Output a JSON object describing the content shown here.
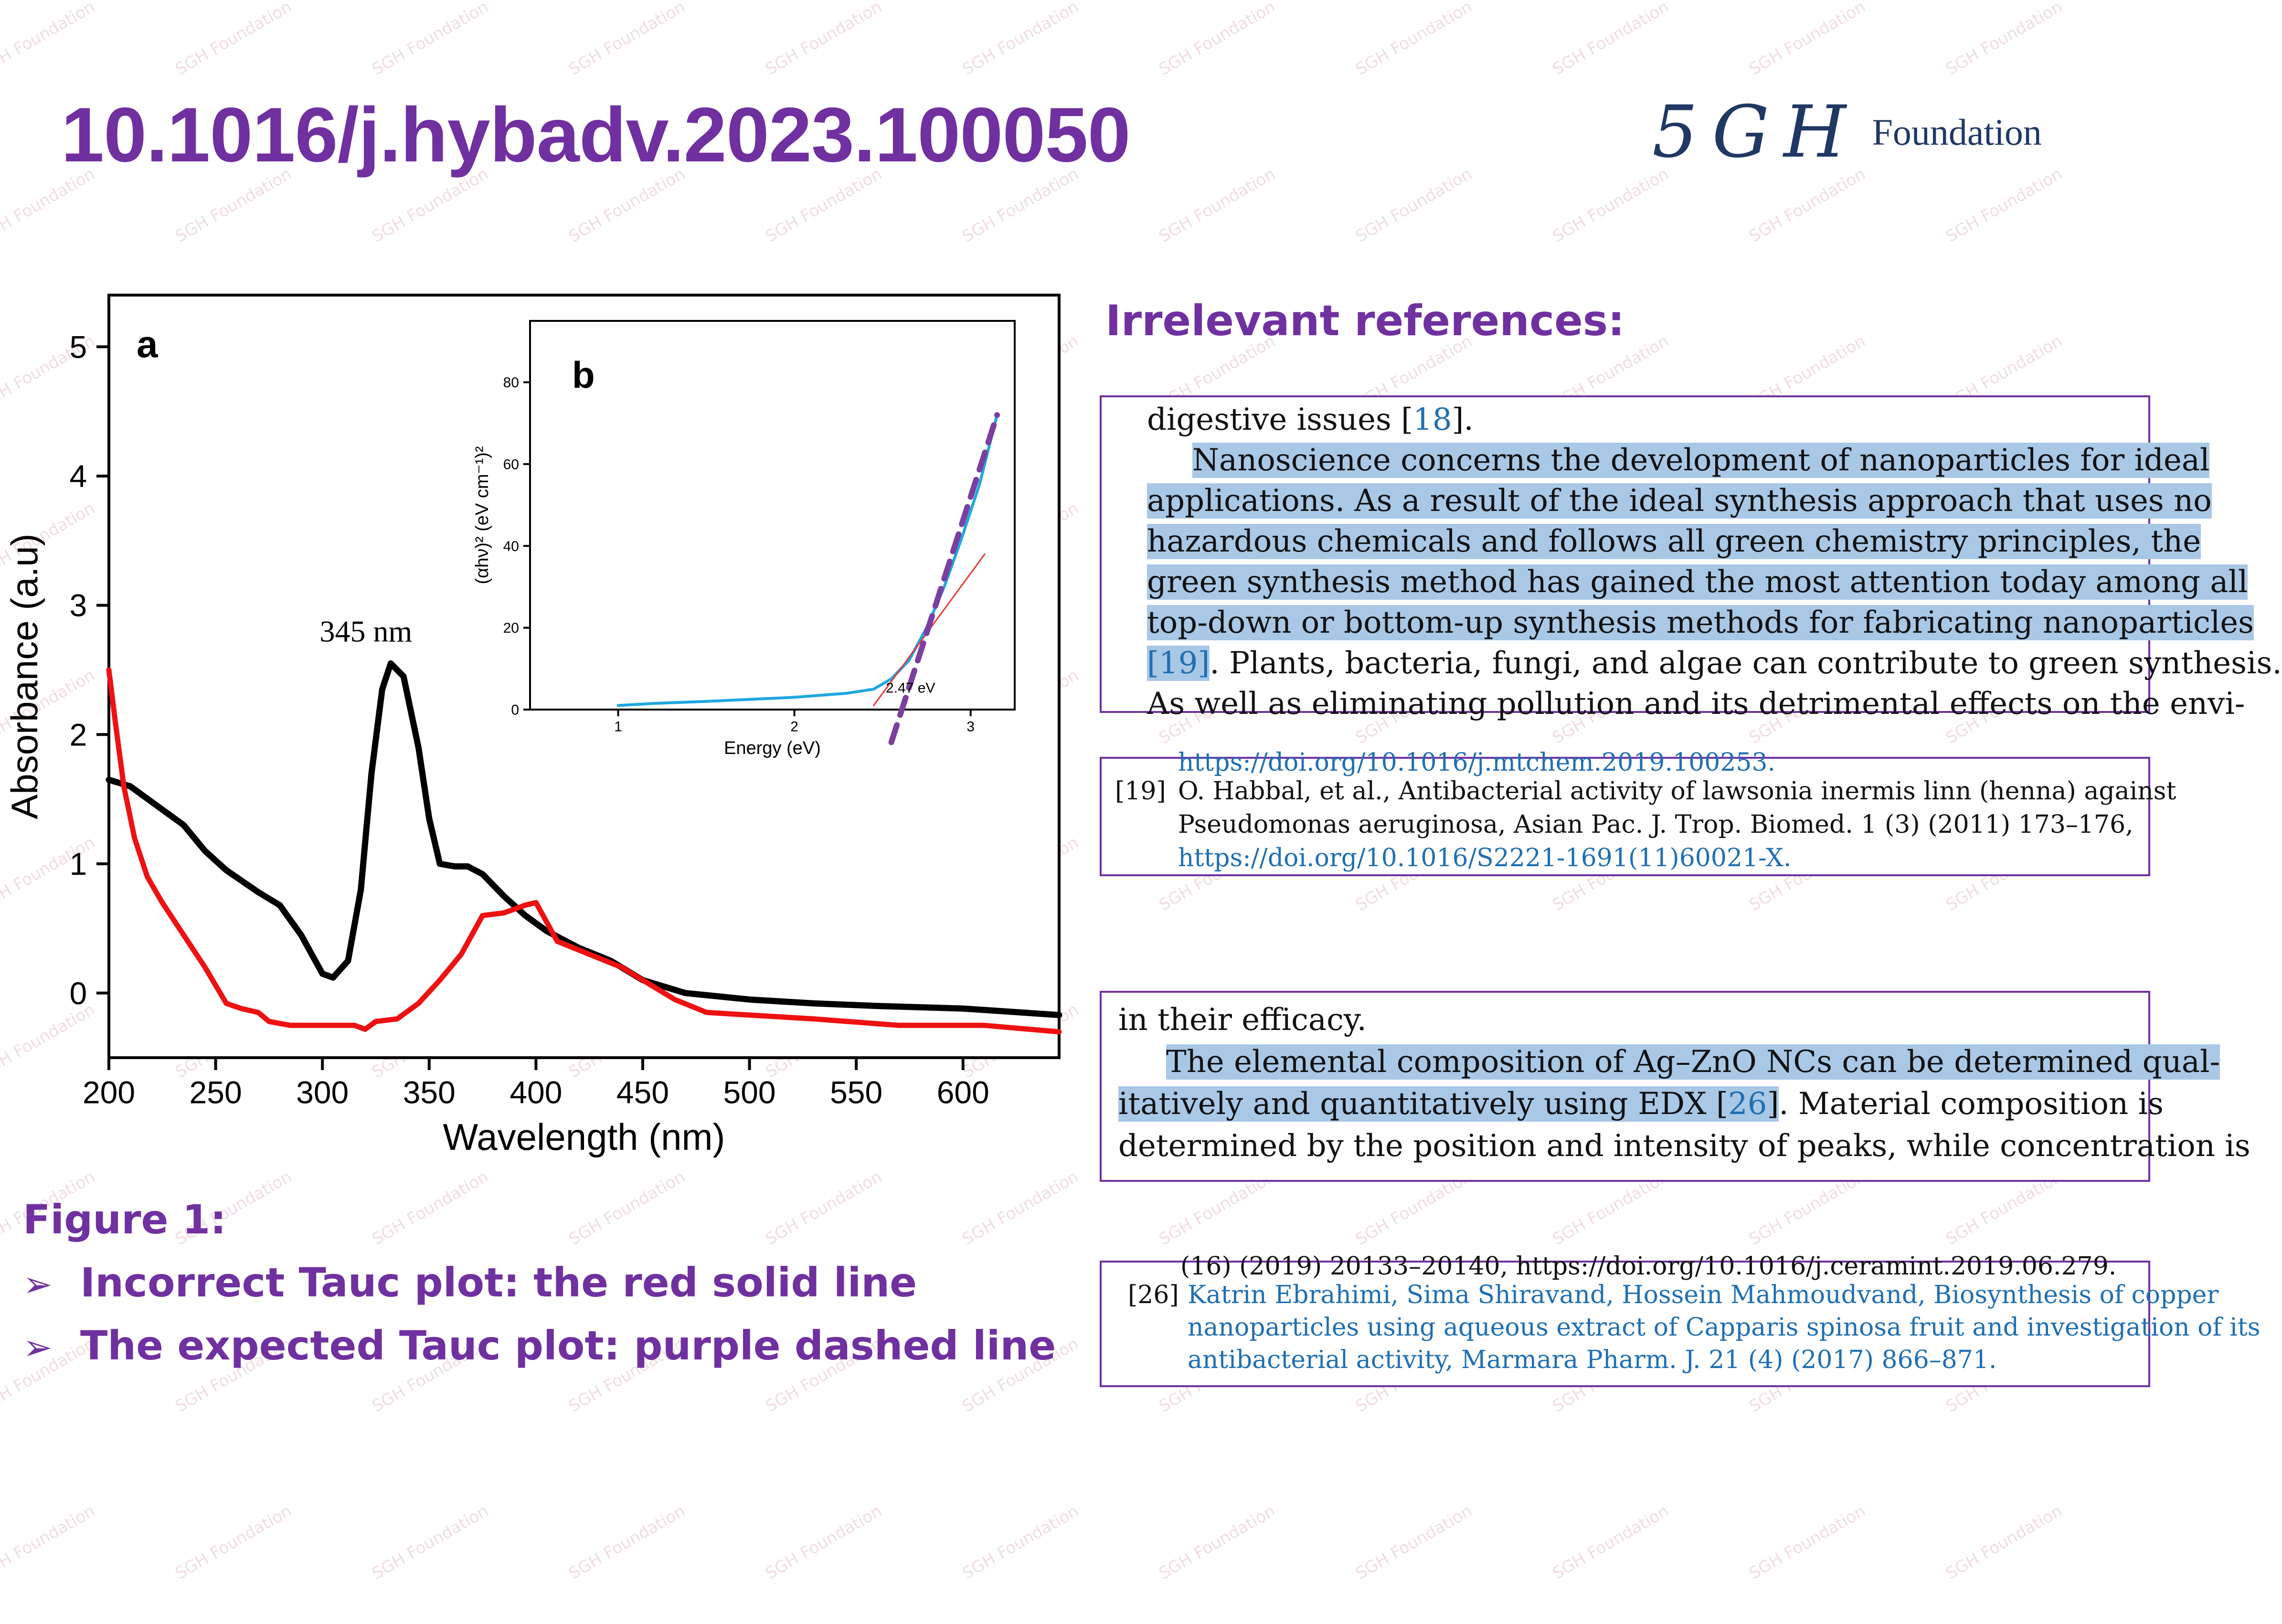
{
  "header": {
    "doi": "10.1016/j.hybadv.2023.100050",
    "logo_mark": "5GH",
    "logo_word": "Foundation"
  },
  "watermark": "SGH Foundation",
  "chart_data": [
    {
      "type": "line",
      "panel_label": "a",
      "xlabel": "Wavelength (nm)",
      "ylabel": "Absorbance (a.u)",
      "xlim": [
        200,
        645
      ],
      "ylim": [
        -0.5,
        5.4
      ],
      "xticks": [
        200,
        250,
        300,
        350,
        400,
        450,
        500,
        550,
        600
      ],
      "yticks": [
        0,
        1,
        2,
        3,
        4,
        5
      ],
      "annotation": "345 nm",
      "series": [
        {
          "color": "#000000",
          "x": [
            200,
            210,
            220,
            235,
            245,
            255,
            270,
            280,
            290,
            300,
            305,
            312,
            318,
            323,
            328,
            332,
            338,
            345,
            350,
            355,
            362,
            368,
            375,
            385,
            395,
            405,
            420,
            435,
            450,
            470,
            500,
            530,
            560,
            600,
            645
          ],
          "y": [
            1.65,
            1.6,
            1.48,
            1.3,
            1.1,
            0.95,
            0.78,
            0.68,
            0.45,
            0.15,
            0.12,
            0.25,
            0.8,
            1.7,
            2.35,
            2.55,
            2.45,
            1.9,
            1.35,
            1.0,
            0.98,
            0.98,
            0.92,
            0.75,
            0.6,
            0.48,
            0.35,
            0.25,
            0.1,
            0.0,
            -0.05,
            -0.08,
            -0.1,
            -0.12,
            -0.17
          ]
        },
        {
          "color": "#ee1111",
          "x": [
            200,
            203,
            207,
            212,
            218,
            225,
            235,
            245,
            255,
            262,
            270,
            275,
            285,
            300,
            315,
            320,
            325,
            335,
            345,
            355,
            365,
            375,
            385,
            395,
            400,
            410,
            425,
            440,
            450,
            465,
            480,
            500,
            530,
            570,
            610,
            645
          ],
          "y": [
            2.5,
            2.1,
            1.6,
            1.2,
            0.9,
            0.7,
            0.45,
            0.2,
            -0.08,
            -0.12,
            -0.15,
            -0.22,
            -0.25,
            -0.25,
            -0.25,
            -0.28,
            -0.22,
            -0.2,
            -0.08,
            0.1,
            0.3,
            0.6,
            0.62,
            0.68,
            0.7,
            0.4,
            0.3,
            0.2,
            0.1,
            -0.05,
            -0.15,
            -0.17,
            -0.2,
            -0.25,
            -0.25,
            -0.3
          ]
        }
      ]
    },
    {
      "type": "line",
      "panel_label": "b",
      "xlabel": "Energy (eV)",
      "ylabel": "(αhν)² (eV cm⁻¹)²",
      "xlim": [
        0.5,
        3.25
      ],
      "ylim": [
        0,
        95
      ],
      "xticks": [
        1,
        2,
        3
      ],
      "yticks": [
        0,
        20,
        40,
        60,
        80
      ],
      "annotation": "2.47 eV",
      "series": [
        {
          "color": "#1ea7e1",
          "x": [
            1.0,
            1.2,
            1.5,
            2.0,
            2.3,
            2.45,
            2.55,
            2.65,
            2.75,
            2.85,
            2.95,
            3.05,
            3.15
          ],
          "y": [
            1,
            1.5,
            2,
            3,
            4,
            5,
            7.5,
            12,
            20,
            30,
            42,
            55,
            72
          ]
        },
        {
          "color": "#e53935",
          "x": [
            2.45,
            3.08
          ],
          "y": [
            1,
            38
          ]
        },
        {
          "color": "#7b3fa0",
          "dashed": true,
          "x": [
            2.55,
            3.15
          ],
          "y": [
            -8,
            72
          ]
        }
      ]
    }
  ],
  "right_panel": {
    "heading": "Irrelevant references:",
    "box1": {
      "lines": [
        {
          "text": "digestive issues [",
          "ref": "18",
          "tail": "]."
        },
        {
          "hl": "Nanoscience concerns the development of nanoparticles for ideal"
        },
        {
          "hl": "applications. As a result of the ideal synthesis approach that uses no"
        },
        {
          "hl": "hazardous chemicals and follows all green chemistry principles, the"
        },
        {
          "hl": "green synthesis method has gained the most attention today among all"
        },
        {
          "hl": "top-down or bottom-up synthesis methods for fabricating nanoparticles"
        },
        {
          "hl_ref": "[19]",
          "tail": ". Plants, bacteria, fungi, and algae can contribute to green synthesis."
        },
        {
          "text": "As well as eliminating pollution and its detrimental effects on the envi-"
        }
      ]
    },
    "box2": {
      "top": "https://doi.org/10.1016/j.mtchem.2019.100253.",
      "num": "[19]",
      "lines": [
        "O. Habbal, et al., Antibacterial activity of lawsonia inermis linn (henna) against",
        "Pseudomonas aeruginosa, Asian Pac. J. Trop. Biomed. 1 (3) (2011) 173–176,"
      ],
      "link": "https://doi.org/10.1016/S2221-1691(11)60021-X."
    },
    "box3": {
      "lines": [
        {
          "text": "in their efficacy."
        },
        {
          "hl": "The elemental composition of Ag–ZnO NCs can be determined qual-"
        },
        {
          "hl": "itatively and quantitatively using EDX [",
          "ref": "26",
          "hl_tail": "]",
          "tail": ". Material composition is"
        },
        {
          "text": "determined by the position and intensity of peaks, while concentration is"
        }
      ]
    },
    "box4": {
      "top": "(16) (2019) 20133–20140, https://doi.org/10.1016/j.ceramint.2019.06.279.",
      "num": "[26]",
      "lines": [
        "Katrin Ebrahimi, Sima Shiravand, Hossein Mahmoudvand, Biosynthesis of copper",
        "nanoparticles using aqueous extract of Capparis spinosa fruit and investigation of its",
        "antibacterial activity, Marmara Pharm. J. 21 (4) (2017) 866–871."
      ]
    }
  },
  "figure_caption": {
    "title": "Figure 1:",
    "bullets": [
      "Incorrect Tauc plot: the red solid line",
      "The expected Tauc plot: purple dashed line"
    ],
    "bullet_glyph": "➢"
  }
}
